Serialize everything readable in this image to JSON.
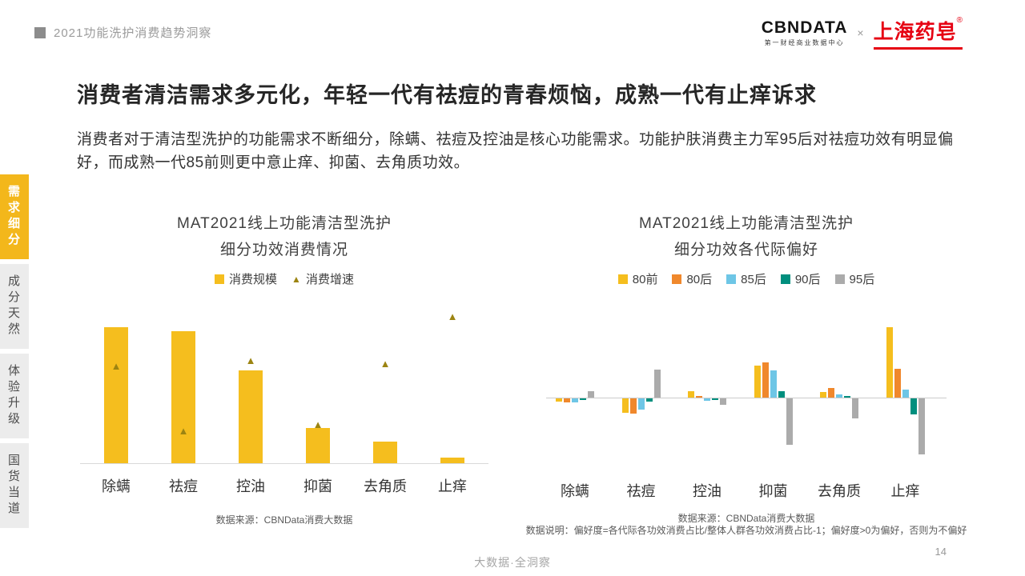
{
  "header": {
    "breadcrumb": "2021功能洗护消费趋势洞察",
    "logo_cbn": "CBNDATA",
    "logo_cbn_sub": "第一财经商业数据中心",
    "logo_times": "×",
    "logo_brand": "上海药皂",
    "logo_reg": "®"
  },
  "title": "消费者清洁需求多元化，年轻一代有祛痘的青春烦恼，成熟一代有止痒诉求",
  "body": "消费者对于清洁型洗护的功能需求不断细分，除螨、祛痘及控油是核心功能需求。功能护肤消费主力军95后对祛痘功效有明显偏好，而成熟一代85前则更中意止痒、抑菌、去角质功效。",
  "sidebar": {
    "items": [
      {
        "label": "需求细分",
        "active": true
      },
      {
        "label": "成分天然",
        "active": false
      },
      {
        "label": "体验升级",
        "active": false
      },
      {
        "label": "国货当道",
        "active": false
      }
    ]
  },
  "colors": {
    "accent_yellow": "#F3B71B",
    "brand_red": "#E60012",
    "olive_marker": "#9C8412",
    "orange": "#F0882C",
    "light_blue": "#6EC6E6",
    "teal": "#008F7E",
    "gray_series": "#ABABAB"
  },
  "chart_data": [
    {
      "type": "bar",
      "title": "MAT2021线上功能清洁型洗护",
      "subtitle": "细分功效消费情况",
      "categories": [
        "除螨",
        "祛痘",
        "控油",
        "抑菌",
        "去角质",
        "止痒"
      ],
      "series": [
        {
          "name": "消费规模",
          "marker": "square",
          "color": "#F5BE1E",
          "values": [
            100,
            97,
            68,
            26,
            16,
            4
          ]
        },
        {
          "name": "消费增速",
          "marker": "triangle",
          "color": "#9C8412",
          "values": [
            66,
            22,
            70,
            26,
            68,
            100
          ]
        }
      ],
      "ylim": [
        0,
        100
      ],
      "grid": false,
      "legend_position": "top",
      "source": "数据来源：CBNData消费大数据"
    },
    {
      "type": "bar",
      "title": "MAT2021线上功能清洁型洗护",
      "subtitle": "细分功效各代际偏好",
      "categories": [
        "除螨",
        "祛痘",
        "控油",
        "抑菌",
        "去角质",
        "止痒"
      ],
      "series": [
        {
          "name": "80前",
          "marker": "square",
          "color": "#F5BE1E",
          "values": [
            -4,
            -18,
            8,
            40,
            7,
            88
          ]
        },
        {
          "name": "80后",
          "marker": "square",
          "color": "#F0882C",
          "values": [
            -5,
            -19,
            2,
            44,
            12,
            36
          ]
        },
        {
          "name": "85后",
          "marker": "square",
          "color": "#6EC6E6",
          "values": [
            -5,
            -14,
            -3,
            34,
            4,
            10
          ]
        },
        {
          "name": "90后",
          "marker": "square",
          "color": "#008F7E",
          "values": [
            -2,
            -4,
            -2,
            8,
            2,
            -20
          ]
        },
        {
          "name": "95后",
          "marker": "square",
          "color": "#ABABAB",
          "values": [
            8,
            35,
            -8,
            -58,
            -25,
            -70
          ]
        }
      ],
      "ylim": [
        -80,
        100
      ],
      "grid": false,
      "legend_position": "top",
      "source": "数据来源：CBNData消费大数据",
      "note": "数据说明：偏好度=各代际各功效消费占比/整体人群各功效消费占比-1；偏好度>0为偏好，否则为不偏好"
    }
  ],
  "footer": {
    "slogan": "大数据·全洞察",
    "page": "14"
  }
}
